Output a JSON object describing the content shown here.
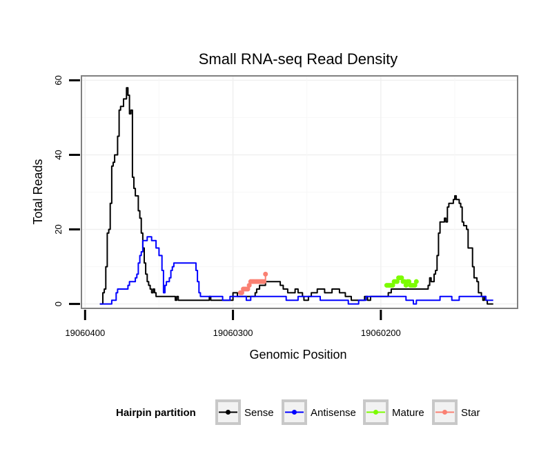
{
  "chart_data": {
    "type": "line",
    "title": "Small RNA-seq Read Density",
    "xlabel": "Genomic Position",
    "ylabel": "Total Reads",
    "x_reversed": true,
    "xlim": [
      19060402,
      19060108
    ],
    "ylim": [
      -1,
      61
    ],
    "x_ticks": [
      {
        "value": 19060400,
        "label": "19060400"
      },
      {
        "value": 19060300,
        "label": "19060300"
      },
      {
        "value": 19060200,
        "label": "19060200"
      }
    ],
    "y_ticks": [
      {
        "value": 0,
        "label": "0"
      },
      {
        "value": 20,
        "label": "20"
      },
      {
        "value": 40,
        "label": "40"
      },
      {
        "value": 60,
        "label": "60"
      }
    ],
    "grid": true,
    "legend": {
      "title": "Hairpin partition",
      "placement": "bottom",
      "entries": [
        {
          "name": "Sense",
          "color": "#000000"
        },
        {
          "name": "Antisense",
          "color": "#0000ff"
        },
        {
          "name": "Mature",
          "color": "#7cfc00"
        },
        {
          "name": "Star",
          "color": "#fa8072"
        }
      ]
    },
    "series": [
      {
        "name": "Sense",
        "color": "#000000",
        "style": "line",
        "points": [
          [
            19060390,
            0
          ],
          [
            19060388,
            3
          ],
          [
            19060387,
            4
          ],
          [
            19060386,
            10
          ],
          [
            19060385,
            19
          ],
          [
            19060384,
            20
          ],
          [
            19060383,
            27
          ],
          [
            19060382,
            37
          ],
          [
            19060381,
            38
          ],
          [
            19060380,
            40
          ],
          [
            19060379,
            40
          ],
          [
            19060378,
            45
          ],
          [
            19060377,
            52
          ],
          [
            19060376,
            53
          ],
          [
            19060375,
            53
          ],
          [
            19060374,
            55
          ],
          [
            19060373,
            55
          ],
          [
            19060372,
            58
          ],
          [
            19060371,
            56
          ],
          [
            19060370,
            51
          ],
          [
            19060369,
            52
          ],
          [
            19060368,
            34
          ],
          [
            19060367,
            31
          ],
          [
            19060366,
            29
          ],
          [
            19060365,
            29
          ],
          [
            19060364,
            25
          ],
          [
            19060363,
            23
          ],
          [
            19060362,
            19
          ],
          [
            19060361,
            15
          ],
          [
            19060360,
            11
          ],
          [
            19060359,
            8
          ],
          [
            19060358,
            6
          ],
          [
            19060357,
            5
          ],
          [
            19060356,
            4
          ],
          [
            19060355,
            3
          ],
          [
            19060354,
            4
          ],
          [
            19060353,
            3
          ],
          [
            19060352,
            2
          ],
          [
            19060340,
            2
          ],
          [
            19060339,
            1
          ],
          [
            19060338,
            2
          ],
          [
            19060337,
            1
          ],
          [
            19060320,
            1
          ],
          [
            19060319,
            1
          ],
          [
            19060316,
            2
          ],
          [
            19060315,
            1
          ],
          [
            19060301,
            1
          ],
          [
            19060300,
            3
          ],
          [
            19060297,
            2
          ],
          [
            19060286,
            2
          ],
          [
            19060285,
            3
          ],
          [
            19060284,
            4
          ],
          [
            19060282,
            5
          ],
          [
            19060278,
            6
          ],
          [
            19060270,
            6
          ],
          [
            19060268,
            5
          ],
          [
            19060266,
            4
          ],
          [
            19060263,
            3
          ],
          [
            19060259,
            3
          ],
          [
            19060258,
            4
          ],
          [
            19060256,
            3
          ],
          [
            19060253,
            2
          ],
          [
            19060252,
            1
          ],
          [
            19060249,
            2
          ],
          [
            19060247,
            3
          ],
          [
            19060245,
            3
          ],
          [
            19060243,
            4
          ],
          [
            19060238,
            3
          ],
          [
            19060233,
            4
          ],
          [
            19060228,
            3
          ],
          [
            19060224,
            2
          ],
          [
            19060220,
            1
          ],
          [
            19060212,
            1
          ],
          [
            19060211,
            2
          ],
          [
            19060210,
            2
          ],
          [
            19060209,
            1
          ],
          [
            19060207,
            2
          ],
          [
            19060196,
            2
          ],
          [
            19060195,
            3
          ],
          [
            19060194,
            3
          ],
          [
            19060193,
            4
          ],
          [
            19060170,
            4
          ],
          [
            19060168,
            5
          ],
          [
            19060167,
            7
          ],
          [
            19060166,
            6
          ],
          [
            19060164,
            8
          ],
          [
            19060163,
            9
          ],
          [
            19060162,
            13
          ],
          [
            19060161,
            19
          ],
          [
            19060160,
            22
          ],
          [
            19060158,
            22
          ],
          [
            19060157,
            23
          ],
          [
            19060156,
            22
          ],
          [
            19060155,
            26
          ],
          [
            19060154,
            27
          ],
          [
            19060152,
            27
          ],
          [
            19060151,
            28
          ],
          [
            19060150,
            29
          ],
          [
            19060149,
            28
          ],
          [
            19060147,
            27
          ],
          [
            19060146,
            26
          ],
          [
            19060145,
            22
          ],
          [
            19060144,
            21
          ],
          [
            19060142,
            20
          ],
          [
            19060141,
            15
          ],
          [
            19060139,
            15
          ],
          [
            19060138,
            10
          ],
          [
            19060137,
            7
          ],
          [
            19060135,
            6
          ],
          [
            19060134,
            3
          ],
          [
            19060132,
            2
          ],
          [
            19060131,
            1
          ],
          [
            19060130,
            2
          ],
          [
            19060129,
            1
          ],
          [
            19060128,
            0
          ],
          [
            19060124,
            0
          ]
        ]
      },
      {
        "name": "Antisense",
        "color": "#0000ff",
        "style": "line",
        "points": [
          [
            19060390,
            0
          ],
          [
            19060383,
            0
          ],
          [
            19060382,
            1
          ],
          [
            19060380,
            1
          ],
          [
            19060379,
            3
          ],
          [
            19060378,
            4
          ],
          [
            19060372,
            4
          ],
          [
            19060371,
            5
          ],
          [
            19060370,
            6
          ],
          [
            19060367,
            6
          ],
          [
            19060366,
            7
          ],
          [
            19060365,
            8
          ],
          [
            19060364,
            11
          ],
          [
            19060363,
            13
          ],
          [
            19060362,
            14
          ],
          [
            19060361,
            17
          ],
          [
            19060359,
            17
          ],
          [
            19060358,
            18
          ],
          [
            19060356,
            18
          ],
          [
            19060355,
            17
          ],
          [
            19060353,
            17
          ],
          [
            19060352,
            15
          ],
          [
            19060350,
            13
          ],
          [
            19060348,
            9
          ],
          [
            19060347,
            3
          ],
          [
            19060346,
            5
          ],
          [
            19060345,
            6
          ],
          [
            19060343,
            7
          ],
          [
            19060342,
            9
          ],
          [
            19060341,
            10
          ],
          [
            19060340,
            11
          ],
          [
            19060326,
            11
          ],
          [
            19060325,
            9
          ],
          [
            19060324,
            6
          ],
          [
            19060323,
            3
          ],
          [
            19060322,
            2
          ],
          [
            19060308,
            2
          ],
          [
            19060307,
            1
          ],
          [
            19060303,
            1
          ],
          [
            19060302,
            2
          ],
          [
            19060292,
            2
          ],
          [
            19060291,
            1
          ],
          [
            19060290,
            1
          ],
          [
            19060288,
            2
          ],
          [
            19060265,
            2
          ],
          [
            19060264,
            1
          ],
          [
            19060258,
            1
          ],
          [
            19060256,
            2
          ],
          [
            19060242,
            2
          ],
          [
            19060241,
            1
          ],
          [
            19060223,
            1
          ],
          [
            19060222,
            0
          ],
          [
            19060216,
            0
          ],
          [
            19060215,
            1
          ],
          [
            19060212,
            1
          ],
          [
            19060210,
            2
          ],
          [
            19060184,
            2
          ],
          [
            19060183,
            1
          ],
          [
            19060180,
            1
          ],
          [
            19060178,
            0
          ],
          [
            19060176,
            1
          ],
          [
            19060162,
            1
          ],
          [
            19060160,
            2
          ],
          [
            19060158,
            2
          ],
          [
            19060154,
            2
          ],
          [
            19060152,
            1
          ],
          [
            19060149,
            1
          ],
          [
            19060147,
            2
          ],
          [
            19060130,
            2
          ],
          [
            19060129,
            1
          ],
          [
            19060124,
            1
          ]
        ]
      },
      {
        "name": "Mature",
        "color": "#7cfc00",
        "style": "line-points",
        "points": [
          [
            19060196,
            5
          ],
          [
            19060195,
            5
          ],
          [
            19060194,
            5
          ],
          [
            19060193,
            5
          ],
          [
            19060192,
            5
          ],
          [
            19060191,
            6
          ],
          [
            19060190,
            6
          ],
          [
            19060189,
            6
          ],
          [
            19060188,
            7
          ],
          [
            19060187,
            7
          ],
          [
            19060186,
            7
          ],
          [
            19060185,
            6
          ],
          [
            19060184,
            6
          ],
          [
            19060183,
            5
          ],
          [
            19060182,
            6
          ],
          [
            19060181,
            6
          ],
          [
            19060180,
            5
          ],
          [
            19060179,
            5
          ],
          [
            19060178,
            5
          ],
          [
            19060177,
            5
          ],
          [
            19060176,
            6
          ]
        ]
      },
      {
        "name": "Star",
        "color": "#fa8072",
        "style": "line-points",
        "points": [
          [
            19060295,
            3
          ],
          [
            19060294,
            3
          ],
          [
            19060293,
            4
          ],
          [
            19060292,
            4
          ],
          [
            19060291,
            4
          ],
          [
            19060290,
            4
          ],
          [
            19060289,
            5
          ],
          [
            19060288,
            6
          ],
          [
            19060287,
            6
          ],
          [
            19060286,
            6
          ],
          [
            19060285,
            6
          ],
          [
            19060284,
            6
          ],
          [
            19060283,
            6
          ],
          [
            19060282,
            6
          ],
          [
            19060281,
            6
          ],
          [
            19060280,
            6
          ],
          [
            19060279,
            6
          ],
          [
            19060278,
            8
          ]
        ]
      }
    ]
  }
}
